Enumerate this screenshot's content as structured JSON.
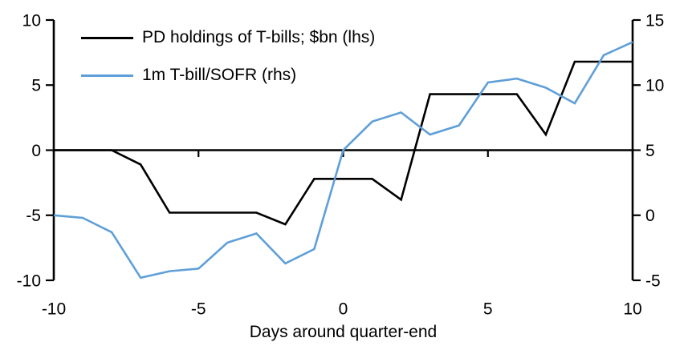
{
  "chart_data": {
    "type": "line",
    "title": "",
    "xlabel": "Days around quarter-end",
    "x": [
      -10,
      -9,
      -8,
      -7,
      -6,
      -5,
      -4,
      -3,
      -2,
      -1,
      0,
      1,
      2,
      3,
      4,
      5,
      6,
      7,
      8,
      9,
      10
    ],
    "series": [
      {
        "name": "PD holdings of T-bills; $bn (lhs)",
        "axis": "left",
        "color": "#000000",
        "values": [
          0,
          0,
          0,
          -1.1,
          -4.8,
          -4.8,
          -4.8,
          -4.8,
          -5.7,
          -2.2,
          -2.2,
          -2.2,
          -3.8,
          4.3,
          4.3,
          4.3,
          4.3,
          1.2,
          6.8,
          6.8,
          6.8
        ]
      },
      {
        "name": "1m T-bill/SOFR (rhs)",
        "axis": "right",
        "color": "#5f9fd8",
        "values": [
          0,
          -0.2,
          -1.3,
          -4.8,
          -4.3,
          -4.1,
          -2.1,
          -1.4,
          -3.7,
          -2.6,
          5.0,
          7.2,
          7.9,
          6.2,
          6.9,
          10.2,
          10.5,
          9.8,
          8.6,
          12.3,
          13.3
        ]
      }
    ],
    "left_axis": {
      "min": -10,
      "max": 10,
      "tick_labels": [
        "10",
        "5",
        "0",
        "-5",
        "-10"
      ],
      "tick_values": [
        10,
        5,
        0,
        -5,
        -10
      ]
    },
    "right_axis": {
      "min": -5,
      "max": 15,
      "tick_labels": [
        "15",
        "10",
        "5",
        "0",
        "-5"
      ],
      "tick_values": [
        15,
        10,
        5,
        0,
        -5
      ]
    },
    "x_axis": {
      "tick_labels": [
        "-10",
        "-5",
        "0",
        "5",
        "10"
      ],
      "tick_values": [
        -10,
        -5,
        0,
        5,
        10
      ]
    },
    "grid": false,
    "legend_position": "top-left-inside",
    "background": "#ffffff",
    "axis_color": "#000000"
  }
}
